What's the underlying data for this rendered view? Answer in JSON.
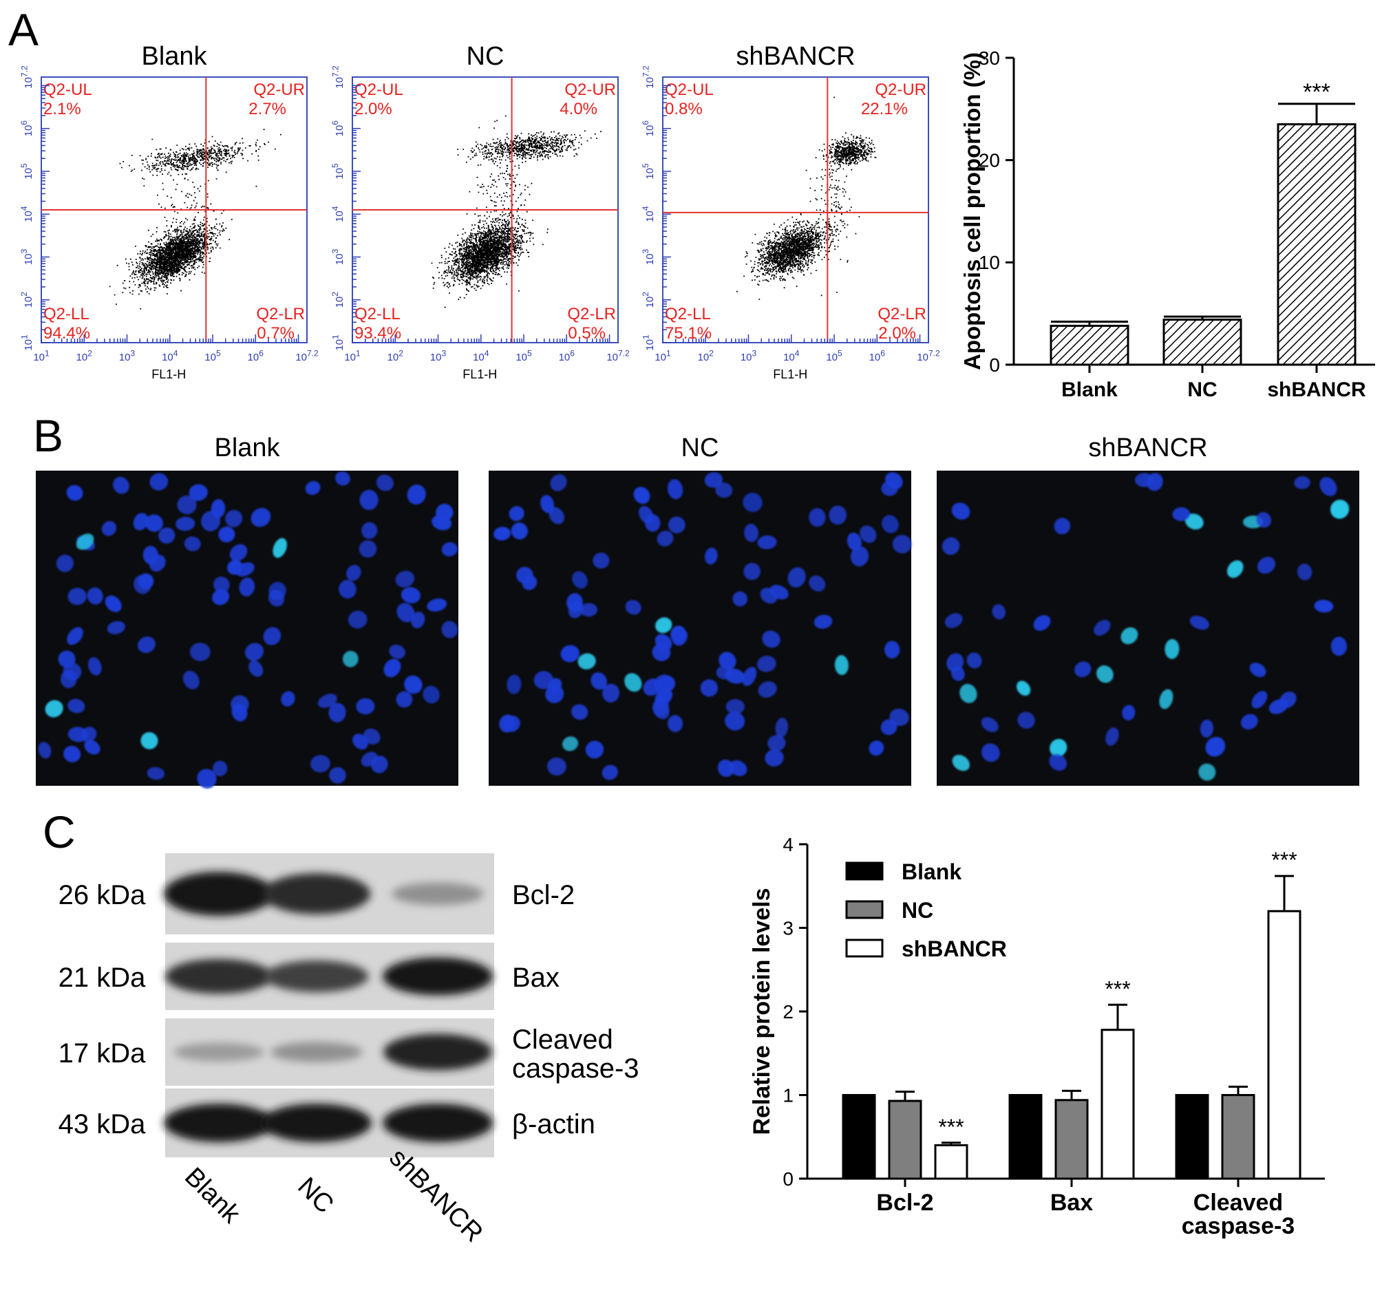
{
  "panel_letters": [
    "A",
    "B",
    "C"
  ],
  "colors": {
    "quadrant_text": "#e8221f",
    "quadrant_line": "#e33333",
    "flow_frame": "#3b4fbf",
    "flow_ticks": "#2e3fb3",
    "nuclei_blue": "#1e3fd8",
    "nuclei_bright": "#2bc6e8",
    "black_bar": "#000000",
    "gray_bar": "#7f7f7f",
    "white_bar": "#ffffff"
  },
  "flow_panels": [
    {
      "title": "Blank",
      "UL": "2.1%",
      "UR": "2.7%",
      "LL": "94.4%",
      "LR": "0.7%"
    },
    {
      "title": "NC",
      "UL": "2.0%",
      "UR": "4.0%",
      "LL": "93.4%",
      "LR": "0.5%"
    },
    {
      "title": "shBANCR",
      "UL": "0.8%",
      "UR": "22.1%",
      "LL": "75.1%",
      "LR": "2.0%"
    }
  ],
  "flow_labels": {
    "ul": "Q2-UL",
    "ur": "Q2-UR",
    "ll": "Q2-LL",
    "lr": "Q2-LR",
    "xlabel": "FL1-H",
    "xticks": [
      "10^1",
      "10^2",
      "10^3",
      "10^4",
      "10^5",
      "10^6",
      "10^7.2"
    ],
    "yticks": [
      "10^1",
      "10^2",
      "10^3",
      "10^4",
      "10^5",
      "10^6",
      "10^7.2"
    ]
  },
  "fluorescence_panels": [
    {
      "title": "Blank"
    },
    {
      "title": "NC"
    },
    {
      "title": "shBANCR"
    }
  ],
  "western_blot": {
    "rows": [
      {
        "kda": "26 kDa",
        "protein": [
          "Bcl-2"
        ],
        "intensity": [
          1.0,
          0.92,
          0.4
        ]
      },
      {
        "kda": "21 kDa",
        "protein": [
          "Bax"
        ],
        "intensity": [
          0.9,
          0.8,
          1.0
        ]
      },
      {
        "kda": "17 kDa",
        "protein": [
          "Cleaved",
          "caspase-3"
        ],
        "intensity": [
          0.35,
          0.4,
          0.95
        ]
      },
      {
        "kda": "43 kDa",
        "protein": [
          "β-actin"
        ],
        "intensity": [
          1.0,
          1.0,
          1.0
        ]
      }
    ],
    "lanes": [
      "Blank",
      "NC",
      "shBANCR"
    ]
  },
  "chart_data": [
    {
      "type": "bar",
      "categories": [
        "Blank",
        "NC",
        "shBANCR"
      ],
      "values": [
        3.8,
        4.4,
        23.5
      ],
      "errors": [
        0.4,
        0.3,
        2.0
      ],
      "significance": [
        "",
        "",
        "***"
      ],
      "ylabel": "Apoptosis cell proportion (%)",
      "ylim": [
        0,
        30
      ],
      "yticks": [
        0,
        10,
        20,
        30
      ],
      "pattern": "diagonal hatch",
      "legend": "none"
    },
    {
      "type": "bar",
      "categories": [
        "Bcl-2",
        "Bax",
        "Cleaved caspase-3"
      ],
      "category_lines": [
        [
          "Bcl-2"
        ],
        [
          "Bax"
        ],
        [
          "Cleaved",
          "caspase-3"
        ]
      ],
      "series": [
        {
          "name": "Blank",
          "values": [
            1.0,
            1.0,
            1.0
          ],
          "errors": [
            0,
            0,
            0
          ],
          "color": "#000000"
        },
        {
          "name": "NC",
          "values": [
            0.93,
            0.94,
            1.0
          ],
          "errors": [
            0.11,
            0.11,
            0.1
          ],
          "color": "#7f7f7f"
        },
        {
          "name": "shBANCR",
          "values": [
            0.4,
            1.78,
            3.2
          ],
          "errors": [
            0.03,
            0.3,
            0.42
          ],
          "color": "#ffffff"
        }
      ],
      "significance": [
        [
          "",
          "",
          "***"
        ],
        [
          "",
          "",
          "***"
        ],
        [
          "",
          "",
          "***"
        ]
      ],
      "ylabel": "Relative protein levels",
      "ylim": [
        0,
        4
      ],
      "yticks": [
        0,
        1,
        2,
        3,
        4
      ],
      "legend": "top-left"
    }
  ]
}
